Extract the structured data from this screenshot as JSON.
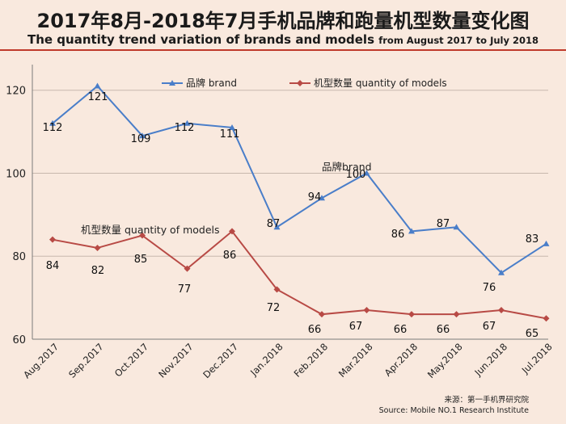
{
  "title": {
    "main": "2017年8月-2018年7月手机品牌和跑量机型数量变化图",
    "sub_main": "The quantity trend variation of brands and models",
    "sub_range": "from  August 2017 to July 2018"
  },
  "source": {
    "cn": "来源：第一手机界研究院",
    "en": "Source: Mobile NO.1 Research Institute"
  },
  "chart_data": {
    "type": "line",
    "x": [
      "Aug.2017",
      "Sep.2017",
      "Oct.2017",
      "Nov.2017",
      "Dec.2017",
      "Jan.2018",
      "Feb.2018",
      "Mar.2018",
      "Apr.2018",
      "May.2018",
      "Jun.2018",
      "Jul.2018"
    ],
    "series": [
      {
        "name": "品牌 brand",
        "values": [
          112,
          121,
          109,
          112,
          111,
          87,
          94,
          100,
          86,
          87,
          76,
          83
        ],
        "color": "#4a7ec9",
        "marker": "triangle"
      },
      {
        "name": "机型数量 quantity of models",
        "values": [
          84,
          82,
          85,
          77,
          86,
          72,
          66,
          67,
          66,
          66,
          67,
          65
        ],
        "color": "#b84a45",
        "marker": "diamond"
      }
    ],
    "ylim": [
      60,
      125
    ],
    "yticks": [
      60,
      80,
      100,
      120
    ],
    "grid": "horizontal",
    "legend": "top",
    "annotations": [
      "品牌brand",
      "机型数量 quantity of models"
    ]
  }
}
